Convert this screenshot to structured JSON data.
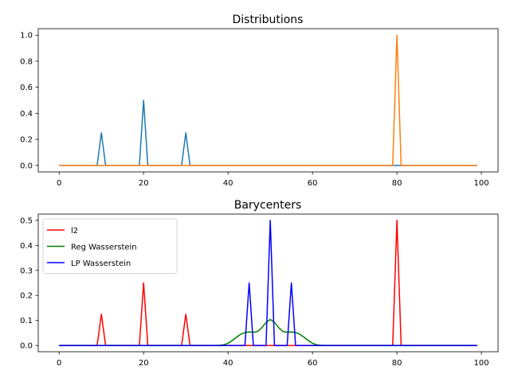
{
  "chart_data": [
    {
      "type": "line",
      "title": "Distributions",
      "xlabel": "",
      "ylabel": "",
      "xlim": [
        -4.95,
        103.95
      ],
      "ylim": [
        -0.05,
        1.05
      ],
      "xticks": [
        0,
        20,
        40,
        60,
        80,
        100
      ],
      "yticks": [
        0.0,
        0.2,
        0.4,
        0.6,
        0.8,
        1.0
      ],
      "xtick_labels": [
        "0",
        "20",
        "40",
        "60",
        "80",
        "100"
      ],
      "ytick_labels": [
        "0.0",
        "0.2",
        "0.4",
        "0.6",
        "0.8",
        "1.0"
      ],
      "legend": null,
      "grid": false,
      "series": [
        {
          "color": "#1f77b4",
          "points": [
            [
              0,
              0
            ],
            [
              9,
              0
            ],
            [
              10,
              0.25
            ],
            [
              11,
              0
            ],
            [
              19,
              0
            ],
            [
              20,
              0.5
            ],
            [
              21,
              0
            ],
            [
              29,
              0
            ],
            [
              30,
              0.25
            ],
            [
              31,
              0
            ],
            [
              79,
              0
            ],
            [
              80,
              0
            ],
            [
              81,
              0
            ],
            [
              99,
              0
            ]
          ]
        },
        {
          "color": "#ff7f0e",
          "points": [
            [
              0,
              0
            ],
            [
              79,
              0
            ],
            [
              80,
              1.0
            ],
            [
              81,
              0
            ],
            [
              99,
              0
            ]
          ]
        }
      ]
    },
    {
      "type": "line",
      "title": "Barycenters",
      "xlabel": "",
      "ylabel": "",
      "xlim": [
        -4.95,
        103.95
      ],
      "ylim": [
        -0.025,
        0.525
      ],
      "xticks": [
        0,
        20,
        40,
        60,
        80,
        100
      ],
      "yticks": [
        0.0,
        0.1,
        0.2,
        0.3,
        0.4,
        0.5
      ],
      "xtick_labels": [
        "0",
        "20",
        "40",
        "60",
        "80",
        "100"
      ],
      "ytick_labels": [
        "0.0",
        "0.1",
        "0.2",
        "0.3",
        "0.4",
        "0.5"
      ],
      "legend": "upper-left",
      "grid": false,
      "series": [
        {
          "name": "l2",
          "color": "#ff0000",
          "points": [
            [
              0,
              0
            ],
            [
              9,
              0
            ],
            [
              10,
              0.125
            ],
            [
              11,
              0
            ],
            [
              19,
              0
            ],
            [
              20,
              0.25
            ],
            [
              21,
              0
            ],
            [
              29,
              0
            ],
            [
              30,
              0.125
            ],
            [
              31,
              0
            ],
            [
              79,
              0
            ],
            [
              80,
              0.5
            ],
            [
              81,
              0
            ],
            [
              99,
              0
            ]
          ]
        },
        {
          "name": "Reg Wasserstein",
          "color": "#008000",
          "points": [
            [
              0,
              0
            ],
            [
              37,
              0
            ],
            [
              38,
              0.001
            ],
            [
              39,
              0.003
            ],
            [
              40,
              0.009
            ],
            [
              41,
              0.02
            ],
            [
              42,
              0.033
            ],
            [
              43,
              0.045
            ],
            [
              44,
              0.052
            ],
            [
              45,
              0.054
            ],
            [
              46,
              0.053
            ],
            [
              47,
              0.056
            ],
            [
              48,
              0.071
            ],
            [
              49,
              0.092
            ],
            [
              50,
              0.104
            ],
            [
              51,
              0.092
            ],
            [
              52,
              0.071
            ],
            [
              53,
              0.056
            ],
            [
              54,
              0.053
            ],
            [
              55,
              0.054
            ],
            [
              56,
              0.052
            ],
            [
              57,
              0.045
            ],
            [
              58,
              0.033
            ],
            [
              59,
              0.02
            ],
            [
              60,
              0.009
            ],
            [
              61,
              0.003
            ],
            [
              62,
              0.001
            ],
            [
              63,
              0
            ],
            [
              99,
              0
            ]
          ]
        },
        {
          "name": "LP Wasserstein",
          "color": "#0000ff",
          "points": [
            [
              0,
              0
            ],
            [
              44,
              0
            ],
            [
              45,
              0.25
            ],
            [
              46,
              0
            ],
            [
              49,
              0
            ],
            [
              50,
              0.5
            ],
            [
              51,
              0
            ],
            [
              54,
              0
            ],
            [
              55,
              0.25
            ],
            [
              56,
              0
            ],
            [
              99,
              0
            ]
          ]
        }
      ]
    }
  ]
}
